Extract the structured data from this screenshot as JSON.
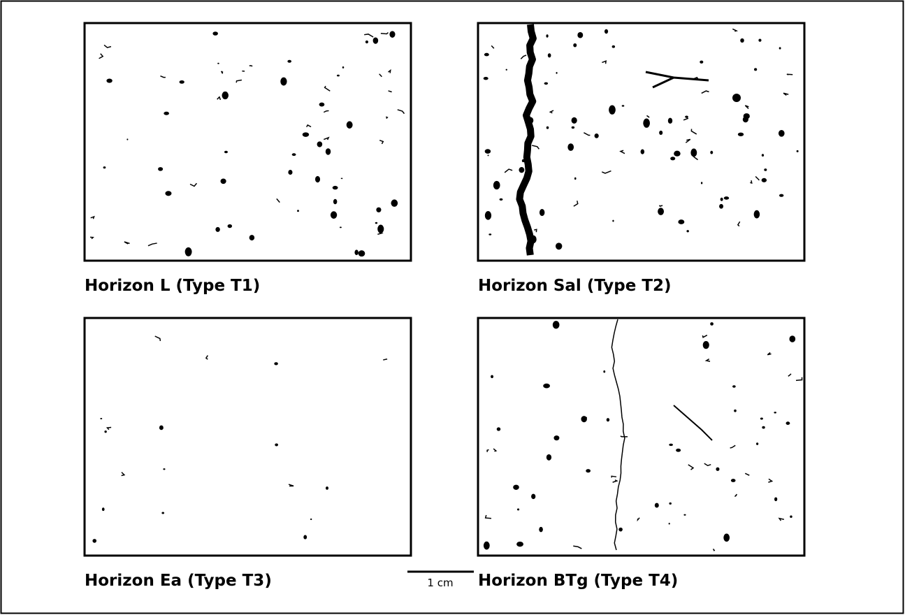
{
  "panels": [
    {
      "label": "Horizon L (Type T1)"
    },
    {
      "label": "Horizon Sal (Type T2)"
    },
    {
      "label": "Horizon Ea (Type T3)"
    },
    {
      "label": "Horizon BTg (Type T4)"
    }
  ],
  "scale_bar": {
    "label": "1 cm"
  }
}
